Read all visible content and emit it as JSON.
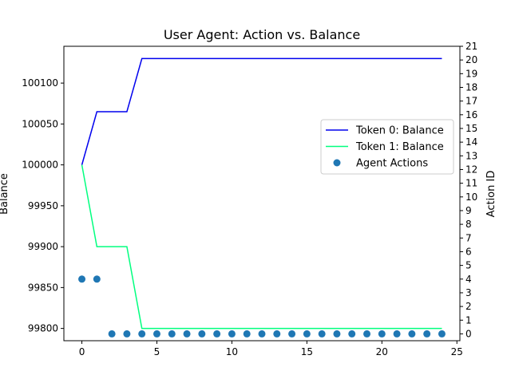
{
  "chart_data": {
    "type": "line",
    "title": "User Agent: Action vs. Balance",
    "xlabel": "",
    "ylabel": "Balance",
    "y2label": "Action ID",
    "xlim": [
      -1.2,
      25.2
    ],
    "ylim": [
      99785,
      100145
    ],
    "y2lim": [
      -0.5,
      21
    ],
    "x_ticks": [
      0,
      5,
      10,
      15,
      20,
      25
    ],
    "y_ticks": [
      99800,
      99850,
      99900,
      99950,
      100000,
      100050,
      100100
    ],
    "y2_ticks": [
      0,
      1,
      2,
      3,
      4,
      5,
      6,
      7,
      8,
      9,
      10,
      11,
      12,
      13,
      14,
      15,
      16,
      17,
      18,
      19,
      20,
      21
    ],
    "x": [
      0,
      1,
      2,
      3,
      4,
      5,
      6,
      7,
      8,
      9,
      10,
      11,
      12,
      13,
      14,
      15,
      16,
      17,
      18,
      19,
      20,
      21,
      22,
      23,
      24
    ],
    "series": [
      {
        "name": "Token 0: Balance",
        "axis": "left",
        "color": "#0000ee",
        "values": [
          100000,
          100065,
          100065,
          100065,
          100130,
          100130,
          100130,
          100130,
          100130,
          100130,
          100130,
          100130,
          100130,
          100130,
          100130,
          100130,
          100130,
          100130,
          100130,
          100130,
          100130,
          100130,
          100130,
          100130,
          100130
        ]
      },
      {
        "name": "Token 1: Balance",
        "axis": "right-scaled-left",
        "color": "#00ff7f",
        "values": [
          100000,
          99900,
          99900,
          99900,
          99800,
          99800,
          99800,
          99800,
          99800,
          99800,
          99800,
          99800,
          99800,
          99800,
          99800,
          99800,
          99800,
          99800,
          99800,
          99800,
          99800,
          99800,
          99800,
          99800,
          99800
        ]
      }
    ],
    "scatter": {
      "name": "Agent Actions",
      "axis": "right",
      "color": "#1f77b4",
      "values": [
        4,
        4,
        0,
        0,
        0,
        0,
        0,
        0,
        0,
        0,
        0,
        0,
        0,
        0,
        0,
        0,
        0,
        0,
        0,
        0,
        0,
        0,
        0,
        0,
        0
      ]
    },
    "legend_position": "center-right",
    "grid": false
  }
}
